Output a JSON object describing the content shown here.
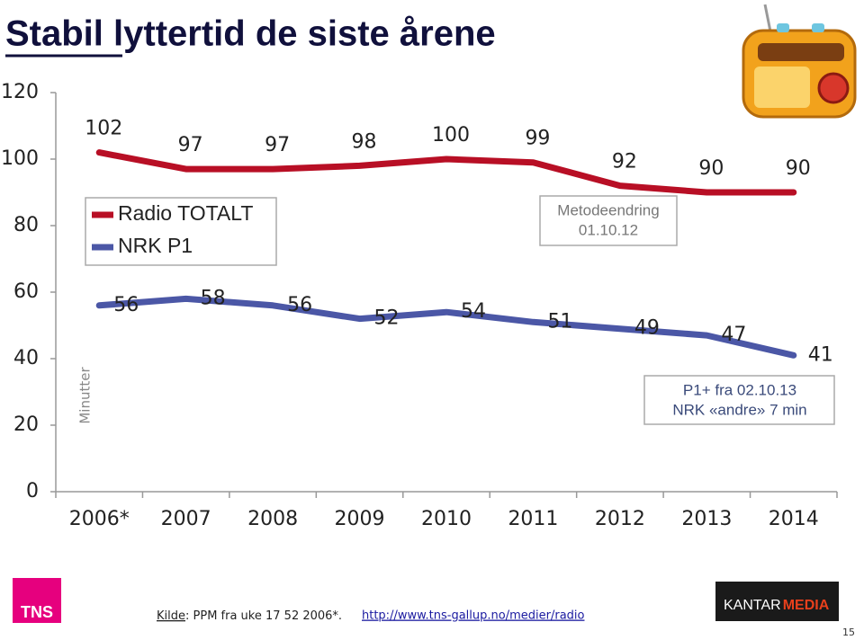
{
  "chart_data": {
    "type": "line",
    "title": "Stabil lyttertid de siste årene",
    "y_label": "Minutter",
    "categories": [
      "2006*",
      "2007",
      "2008",
      "2009",
      "2010",
      "2011",
      "2012",
      "2013",
      "2014"
    ],
    "series": [
      {
        "name": "Radio TOTALT",
        "color": "#b80f25",
        "values": [
          102,
          97,
          97,
          98,
          100,
          99,
          92,
          90,
          90
        ]
      },
      {
        "name": "NRK P1",
        "color": "#4b57a6",
        "values": [
          56,
          58,
          56,
          52,
          54,
          51,
          49,
          47,
          41
        ]
      }
    ],
    "ylim": [
      0,
      120
    ],
    "yticks": [
      0,
      20,
      40,
      60,
      80,
      100,
      120
    ],
    "legend": "upper left",
    "annotations": [
      [
        "Metodeendring",
        "01.10.12"
      ],
      [
        "P1+ fra 02.10.13",
        "NRK «andre» 7 min"
      ]
    ]
  },
  "footer": {
    "source_prefix": "Kilde",
    "source": ": PPM fra uke 17  52 2006*.",
    "url": "http://www.tns-gallup.no/medier/radio",
    "logo_left": "TNS",
    "logo_right": [
      "KANTAR",
      "MEDIA"
    ],
    "page_number": "15"
  }
}
